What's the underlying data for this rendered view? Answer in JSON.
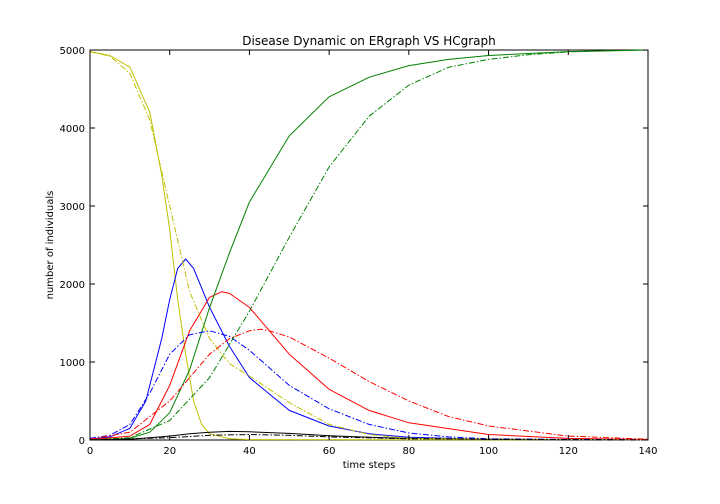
{
  "chart_data": {
    "type": "line",
    "title": "Disease Dynamic on ERgraph VS HCgraph",
    "xlabel": "time steps",
    "ylabel": "number of individuals",
    "xlim": [
      0,
      140
    ],
    "ylim": [
      0,
      5000
    ],
    "xticks": [
      0,
      20,
      40,
      60,
      80,
      100,
      120,
      140
    ],
    "yticks": [
      0,
      1000,
      2000,
      3000,
      4000,
      5000
    ],
    "grid": false,
    "legend": "none",
    "series": [
      {
        "color": "#bfbf00",
        "dash": "solid",
        "x": [
          0,
          5,
          10,
          15,
          18,
          20,
          22,
          24,
          26,
          28,
          30,
          35,
          40,
          140
        ],
        "y": [
          4980,
          4930,
          4780,
          4200,
          3400,
          2700,
          1800,
          1100,
          500,
          200,
          80,
          15,
          5,
          0
        ]
      },
      {
        "color": "#0000ff",
        "dash": "solid",
        "x": [
          0,
          5,
          10,
          14,
          18,
          20,
          22,
          24,
          26,
          28,
          30,
          35,
          40,
          50,
          60,
          70,
          80,
          100,
          120,
          140
        ],
        "y": [
          10,
          40,
          150,
          500,
          1300,
          1800,
          2200,
          2320,
          2200,
          1950,
          1700,
          1200,
          800,
          380,
          180,
          80,
          35,
          8,
          2,
          0
        ]
      },
      {
        "color": "#ff0000",
        "dash": "solid",
        "x": [
          0,
          10,
          15,
          20,
          25,
          30,
          33,
          35,
          40,
          45,
          50,
          60,
          70,
          80,
          100,
          120,
          140
        ],
        "y": [
          5,
          50,
          200,
          700,
          1400,
          1830,
          1900,
          1880,
          1700,
          1400,
          1100,
          650,
          380,
          220,
          70,
          20,
          5
        ]
      },
      {
        "color": "#008000",
        "dash": "solid",
        "x": [
          0,
          10,
          15,
          20,
          25,
          30,
          35,
          40,
          50,
          60,
          70,
          80,
          90,
          100,
          120,
          140
        ],
        "y": [
          0,
          20,
          100,
          350,
          900,
          1700,
          2400,
          3050,
          3900,
          4400,
          4650,
          4800,
          4880,
          4930,
          4980,
          5000
        ]
      },
      {
        "color": "#000000",
        "dash": "solid",
        "x": [
          0,
          10,
          20,
          25,
          30,
          35,
          40,
          50,
          60,
          70,
          80,
          100,
          140
        ],
        "y": [
          0,
          10,
          50,
          80,
          100,
          110,
          105,
          85,
          55,
          35,
          20,
          8,
          0
        ]
      },
      {
        "color": "#bfbf00",
        "dash": "dashdot",
        "x": [
          0,
          5,
          10,
          15,
          20,
          25,
          30,
          35,
          40,
          45,
          50,
          60,
          70,
          80,
          140
        ],
        "y": [
          4980,
          4920,
          4700,
          4100,
          3000,
          1900,
          1300,
          980,
          820,
          650,
          480,
          200,
          70,
          20,
          0
        ]
      },
      {
        "color": "#0000ff",
        "dash": "dashdot",
        "x": [
          0,
          5,
          10,
          15,
          20,
          25,
          30,
          35,
          40,
          50,
          60,
          70,
          80,
          90,
          100,
          140
        ],
        "y": [
          20,
          60,
          200,
          600,
          1100,
          1350,
          1400,
          1330,
          1150,
          700,
          400,
          200,
          90,
          40,
          15,
          0
        ]
      },
      {
        "color": "#ff0000",
        "dash": "dashdot",
        "x": [
          0,
          10,
          20,
          30,
          35,
          40,
          43,
          45,
          50,
          60,
          70,
          80,
          90,
          100,
          120,
          140
        ],
        "y": [
          10,
          100,
          500,
          1100,
          1300,
          1400,
          1420,
          1400,
          1320,
          1050,
          750,
          500,
          300,
          180,
          50,
          10
        ]
      },
      {
        "color": "#008000",
        "dash": "dashdot",
        "x": [
          0,
          10,
          20,
          30,
          40,
          50,
          60,
          70,
          80,
          90,
          100,
          110,
          120,
          130,
          140
        ],
        "y": [
          0,
          30,
          250,
          800,
          1650,
          2600,
          3500,
          4150,
          4550,
          4780,
          4880,
          4940,
          4975,
          4990,
          5000
        ]
      },
      {
        "color": "#000000",
        "dash": "dashdot",
        "x": [
          0,
          20,
          30,
          40,
          50,
          60,
          80,
          140
        ],
        "y": [
          0,
          30,
          60,
          70,
          60,
          40,
          15,
          0
        ]
      }
    ]
  }
}
